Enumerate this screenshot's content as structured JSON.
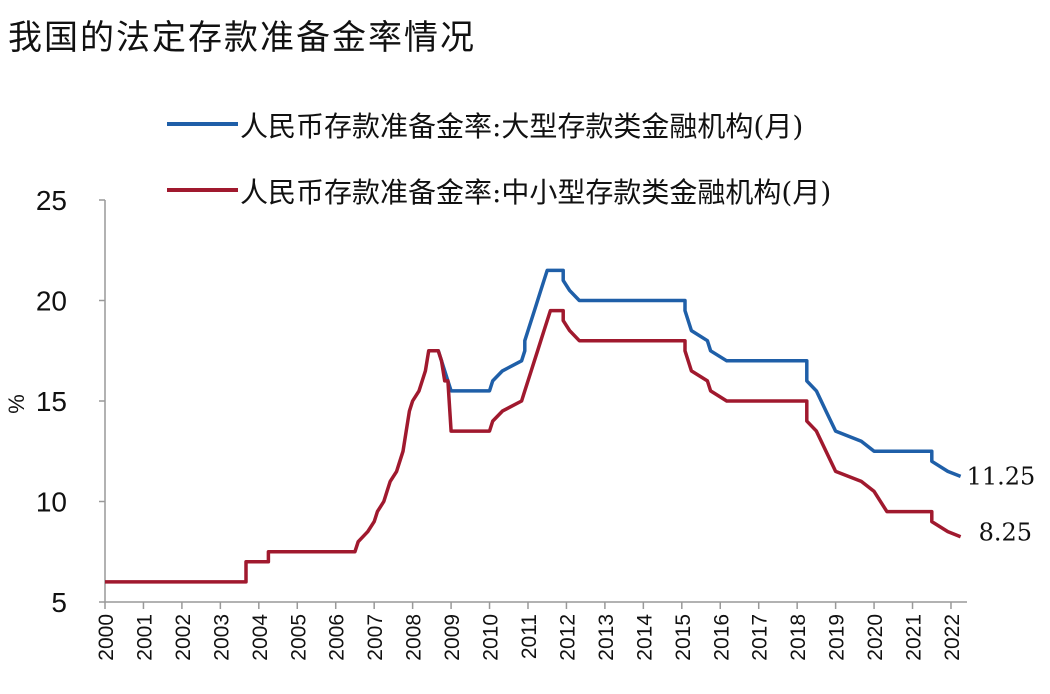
{
  "page_title": "我国的法定存款准备金率情况",
  "chart_data": {
    "type": "line",
    "title": "我国的法定存款准备金率情况",
    "ylabel": "%",
    "xlabel": "",
    "ylim": [
      5,
      25
    ],
    "yticks": [
      "5",
      "10",
      "15",
      "20",
      "25"
    ],
    "xlim": [
      "2000-01",
      "2022-06"
    ],
    "xticks": [
      "2000",
      "2001",
      "2002",
      "2003",
      "2004",
      "2005",
      "2006",
      "2007",
      "2008",
      "2009",
      "2010",
      "2011",
      "2012",
      "2013",
      "2014",
      "2015",
      "2016",
      "2017",
      "2018",
      "2019",
      "2020",
      "2021",
      "2022"
    ],
    "grid": false,
    "legend": "top-right",
    "series": [
      {
        "name": "人民币存款准备金率:大型存款类金融机构(月)",
        "color": "#1f5fa8",
        "end_label": "11.25",
        "points": [
          [
            "2008-06",
            17.5
          ],
          [
            "2008-09",
            17.5
          ],
          [
            "2008-10",
            17.0
          ],
          [
            "2008-12",
            16.0
          ],
          [
            "2009-01",
            15.5
          ],
          [
            "2010-01",
            15.5
          ],
          [
            "2010-02",
            16.0
          ],
          [
            "2010-05",
            16.5
          ],
          [
            "2010-11",
            17.0
          ],
          [
            "2010-12",
            17.5
          ],
          [
            "2010-12",
            18.0
          ],
          [
            "2011-01",
            18.5
          ],
          [
            "2011-02",
            19.0
          ],
          [
            "2011-03",
            19.5
          ],
          [
            "2011-04",
            20.0
          ],
          [
            "2011-05",
            20.5
          ],
          [
            "2011-06",
            21.0
          ],
          [
            "2011-07",
            21.5
          ],
          [
            "2011-12",
            21.5
          ],
          [
            "2011-12",
            21.0
          ],
          [
            "2012-02",
            20.5
          ],
          [
            "2012-05",
            20.0
          ],
          [
            "2015-02",
            20.0
          ],
          [
            "2015-02",
            19.5
          ],
          [
            "2015-04",
            18.5
          ],
          [
            "2015-09",
            18.0
          ],
          [
            "2015-10",
            17.5
          ],
          [
            "2016-03",
            17.0
          ],
          [
            "2018-04",
            17.0
          ],
          [
            "2018-04",
            16.0
          ],
          [
            "2018-07",
            15.5
          ],
          [
            "2018-10",
            14.5
          ],
          [
            "2019-01",
            13.5
          ],
          [
            "2019-09",
            13.0
          ],
          [
            "2020-01",
            12.5
          ],
          [
            "2021-07",
            12.5
          ],
          [
            "2021-07",
            12.0
          ],
          [
            "2021-12",
            11.5
          ],
          [
            "2022-04",
            11.25
          ]
        ]
      },
      {
        "name": "人民币存款准备金率:中小型存款类金融机构(月)",
        "color": "#a0192e",
        "end_label": "8.25",
        "points": [
          [
            "2000-01",
            6.0
          ],
          [
            "2003-09",
            6.0
          ],
          [
            "2003-09",
            7.0
          ],
          [
            "2004-04",
            7.0
          ],
          [
            "2004-04",
            7.5
          ],
          [
            "2006-07",
            7.5
          ],
          [
            "2006-08",
            8.0
          ],
          [
            "2006-11",
            8.5
          ],
          [
            "2007-01",
            9.0
          ],
          [
            "2007-02",
            9.5
          ],
          [
            "2007-04",
            10.0
          ],
          [
            "2007-05",
            10.5
          ],
          [
            "2007-06",
            11.0
          ],
          [
            "2007-08",
            11.5
          ],
          [
            "2007-09",
            12.0
          ],
          [
            "2007-10",
            12.5
          ],
          [
            "2007-11",
            13.5
          ],
          [
            "2007-12",
            14.5
          ],
          [
            "2008-01",
            15.0
          ],
          [
            "2008-03",
            15.5
          ],
          [
            "2008-04",
            16.0
          ],
          [
            "2008-05",
            16.5
          ],
          [
            "2008-06",
            17.5
          ],
          [
            "2008-09",
            17.5
          ],
          [
            "2008-10",
            17.0
          ],
          [
            "2008-11",
            16.0
          ],
          [
            "2008-12",
            16.0
          ],
          [
            "2009-01",
            13.5
          ],
          [
            "2010-01",
            13.5
          ],
          [
            "2010-02",
            14.0
          ],
          [
            "2010-05",
            14.5
          ],
          [
            "2010-11",
            15.0
          ],
          [
            "2010-12",
            15.5
          ],
          [
            "2011-01",
            16.0
          ],
          [
            "2011-02",
            16.5
          ],
          [
            "2011-03",
            17.0
          ],
          [
            "2011-04",
            17.5
          ],
          [
            "2011-05",
            18.0
          ],
          [
            "2011-06",
            18.5
          ],
          [
            "2011-07",
            19.0
          ],
          [
            "2011-08",
            19.5
          ],
          [
            "2011-12",
            19.5
          ],
          [
            "2011-12",
            19.0
          ],
          [
            "2012-02",
            18.5
          ],
          [
            "2012-05",
            18.0
          ],
          [
            "2015-02",
            18.0
          ],
          [
            "2015-02",
            17.5
          ],
          [
            "2015-04",
            16.5
          ],
          [
            "2015-09",
            16.0
          ],
          [
            "2015-10",
            15.5
          ],
          [
            "2016-03",
            15.0
          ],
          [
            "2018-04",
            15.0
          ],
          [
            "2018-04",
            14.0
          ],
          [
            "2018-07",
            13.5
          ],
          [
            "2018-10",
            12.5
          ],
          [
            "2019-01",
            11.5
          ],
          [
            "2019-09",
            11.0
          ],
          [
            "2020-01",
            10.5
          ],
          [
            "2020-05",
            9.5
          ],
          [
            "2021-07",
            9.5
          ],
          [
            "2021-07",
            9.0
          ],
          [
            "2021-12",
            8.5
          ],
          [
            "2022-04",
            8.25
          ]
        ]
      }
    ]
  }
}
